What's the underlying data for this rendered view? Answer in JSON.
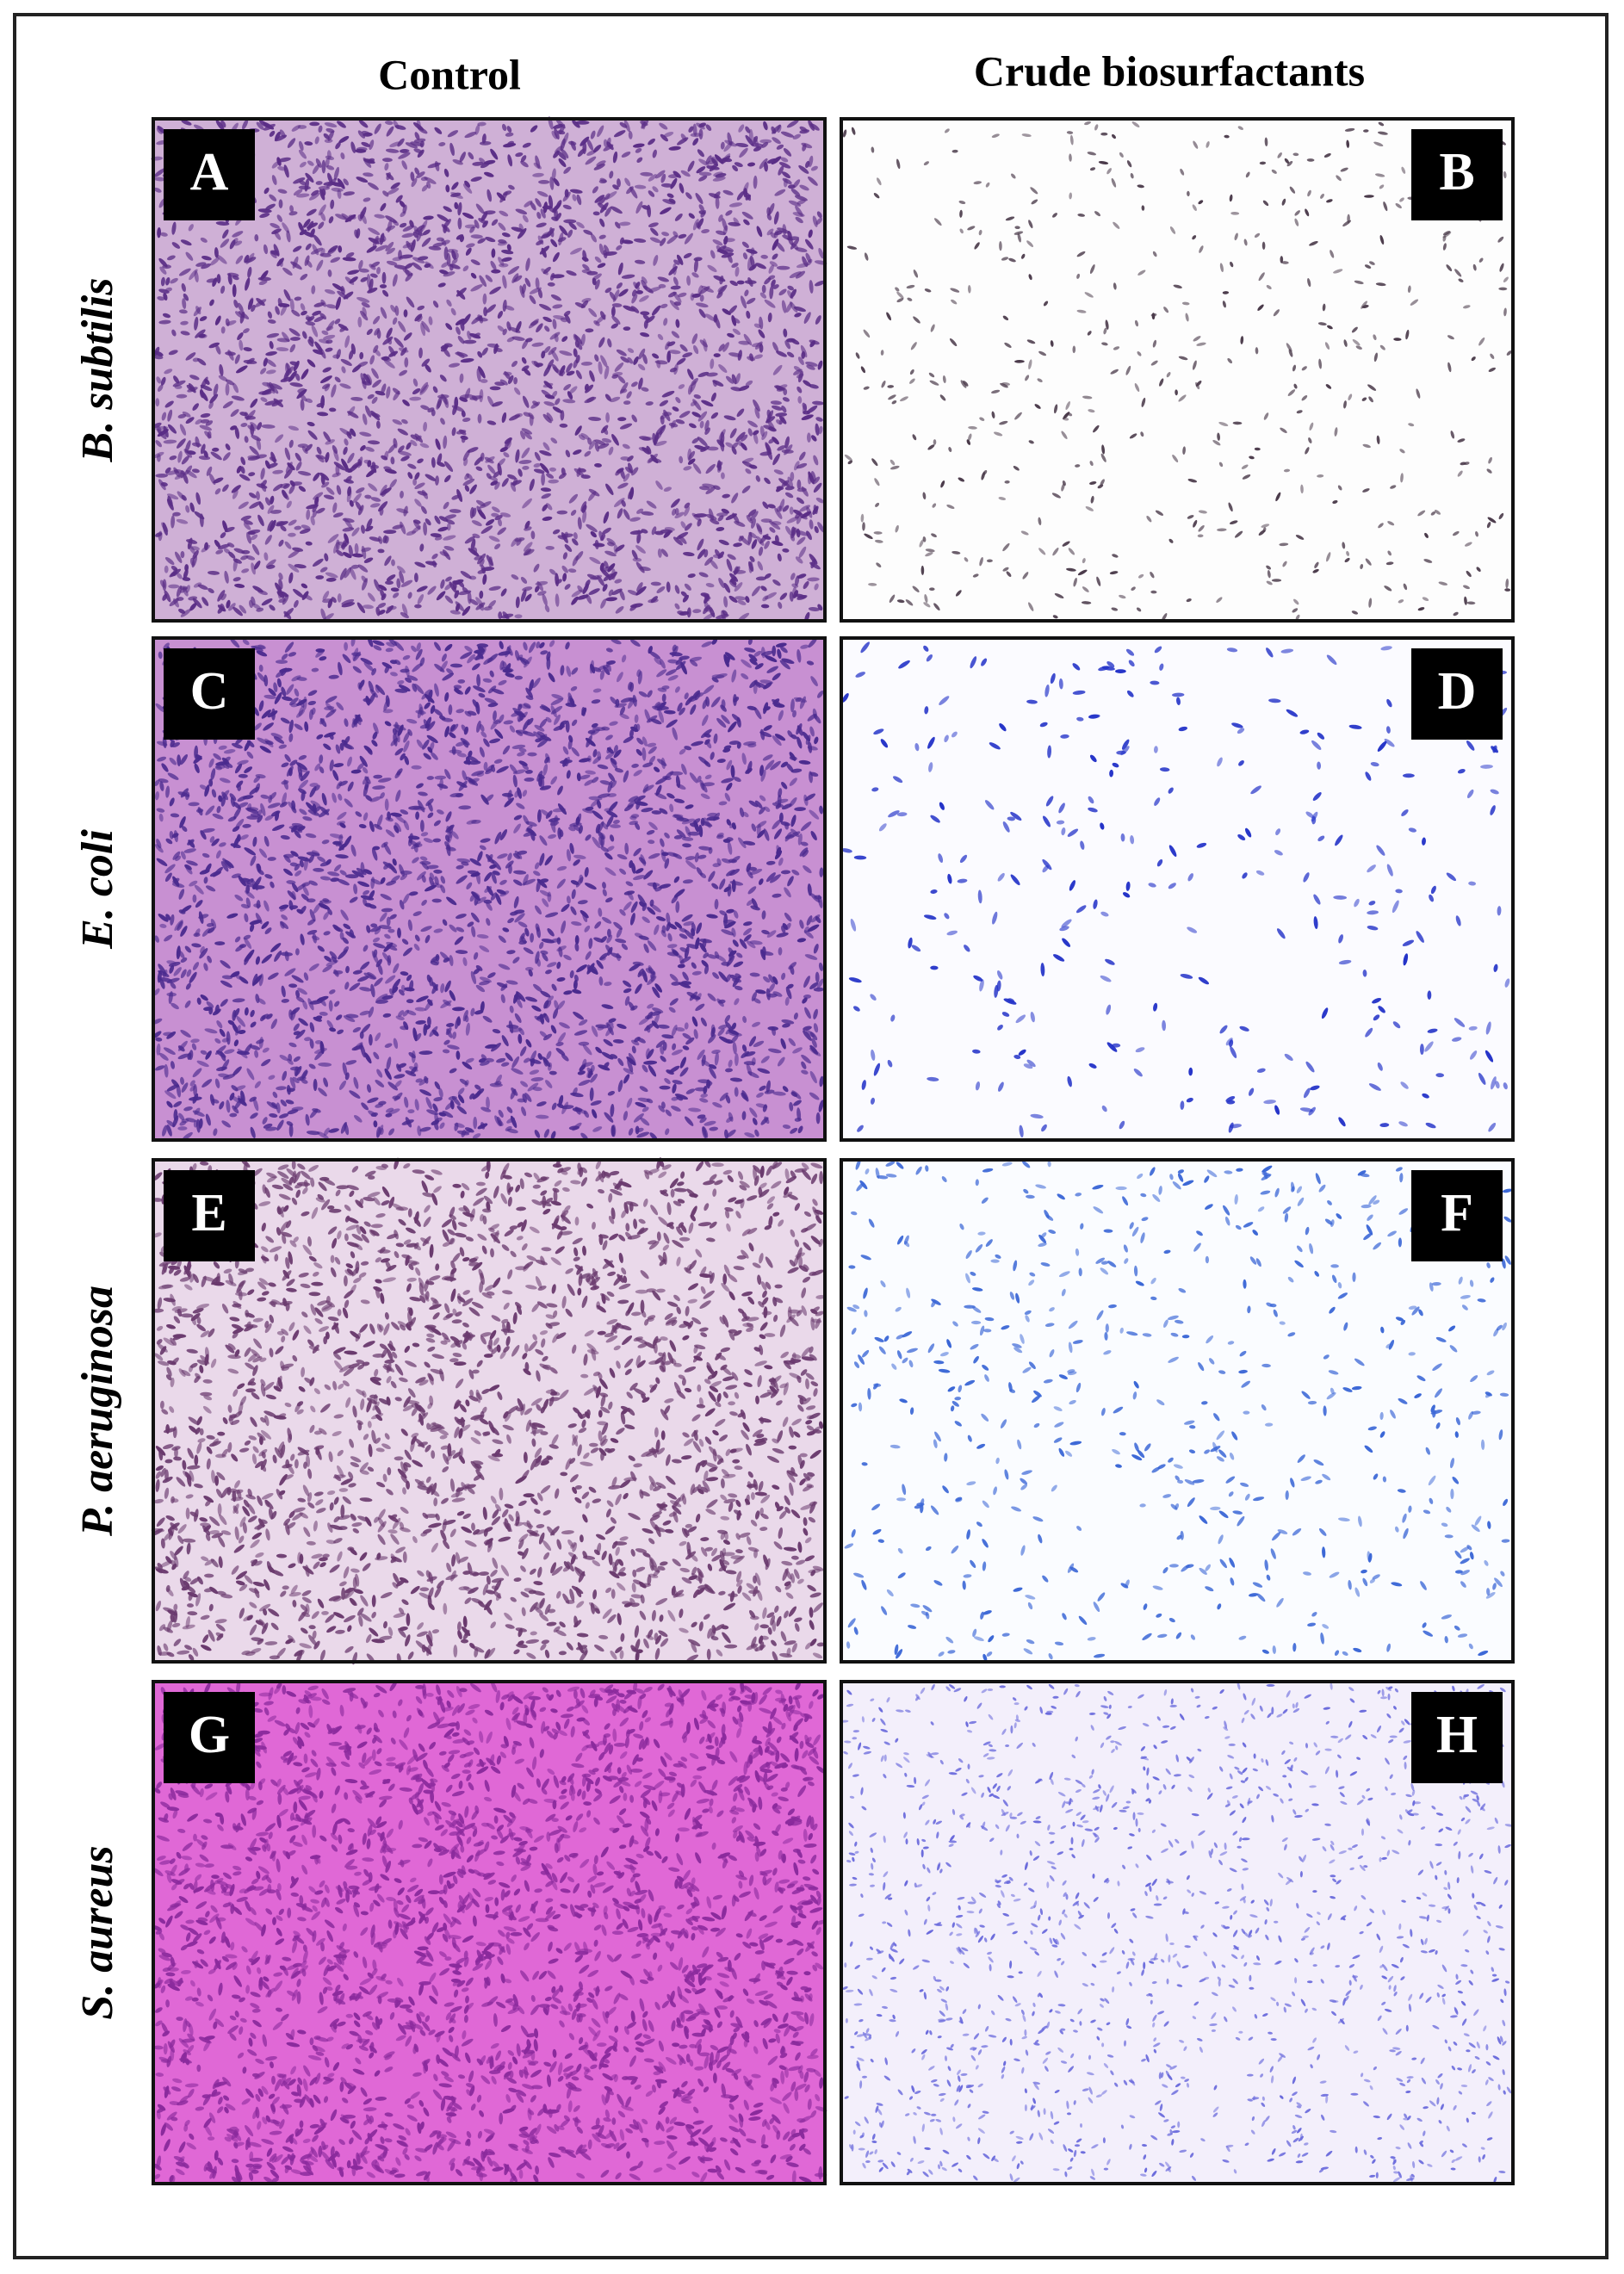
{
  "headers": {
    "columns": [
      "Control",
      "Crude biosurfactants"
    ]
  },
  "rows": [
    {
      "label": "B. subtilis",
      "panels": [
        "A",
        "B"
      ]
    },
    {
      "label": "E. coli",
      "panels": [
        "C",
        "D"
      ]
    },
    {
      "label": "P. aeruginosa",
      "panels": [
        "E",
        "F"
      ]
    },
    {
      "label": "S. aureus",
      "panels": [
        "G",
        "H"
      ]
    }
  ]
}
